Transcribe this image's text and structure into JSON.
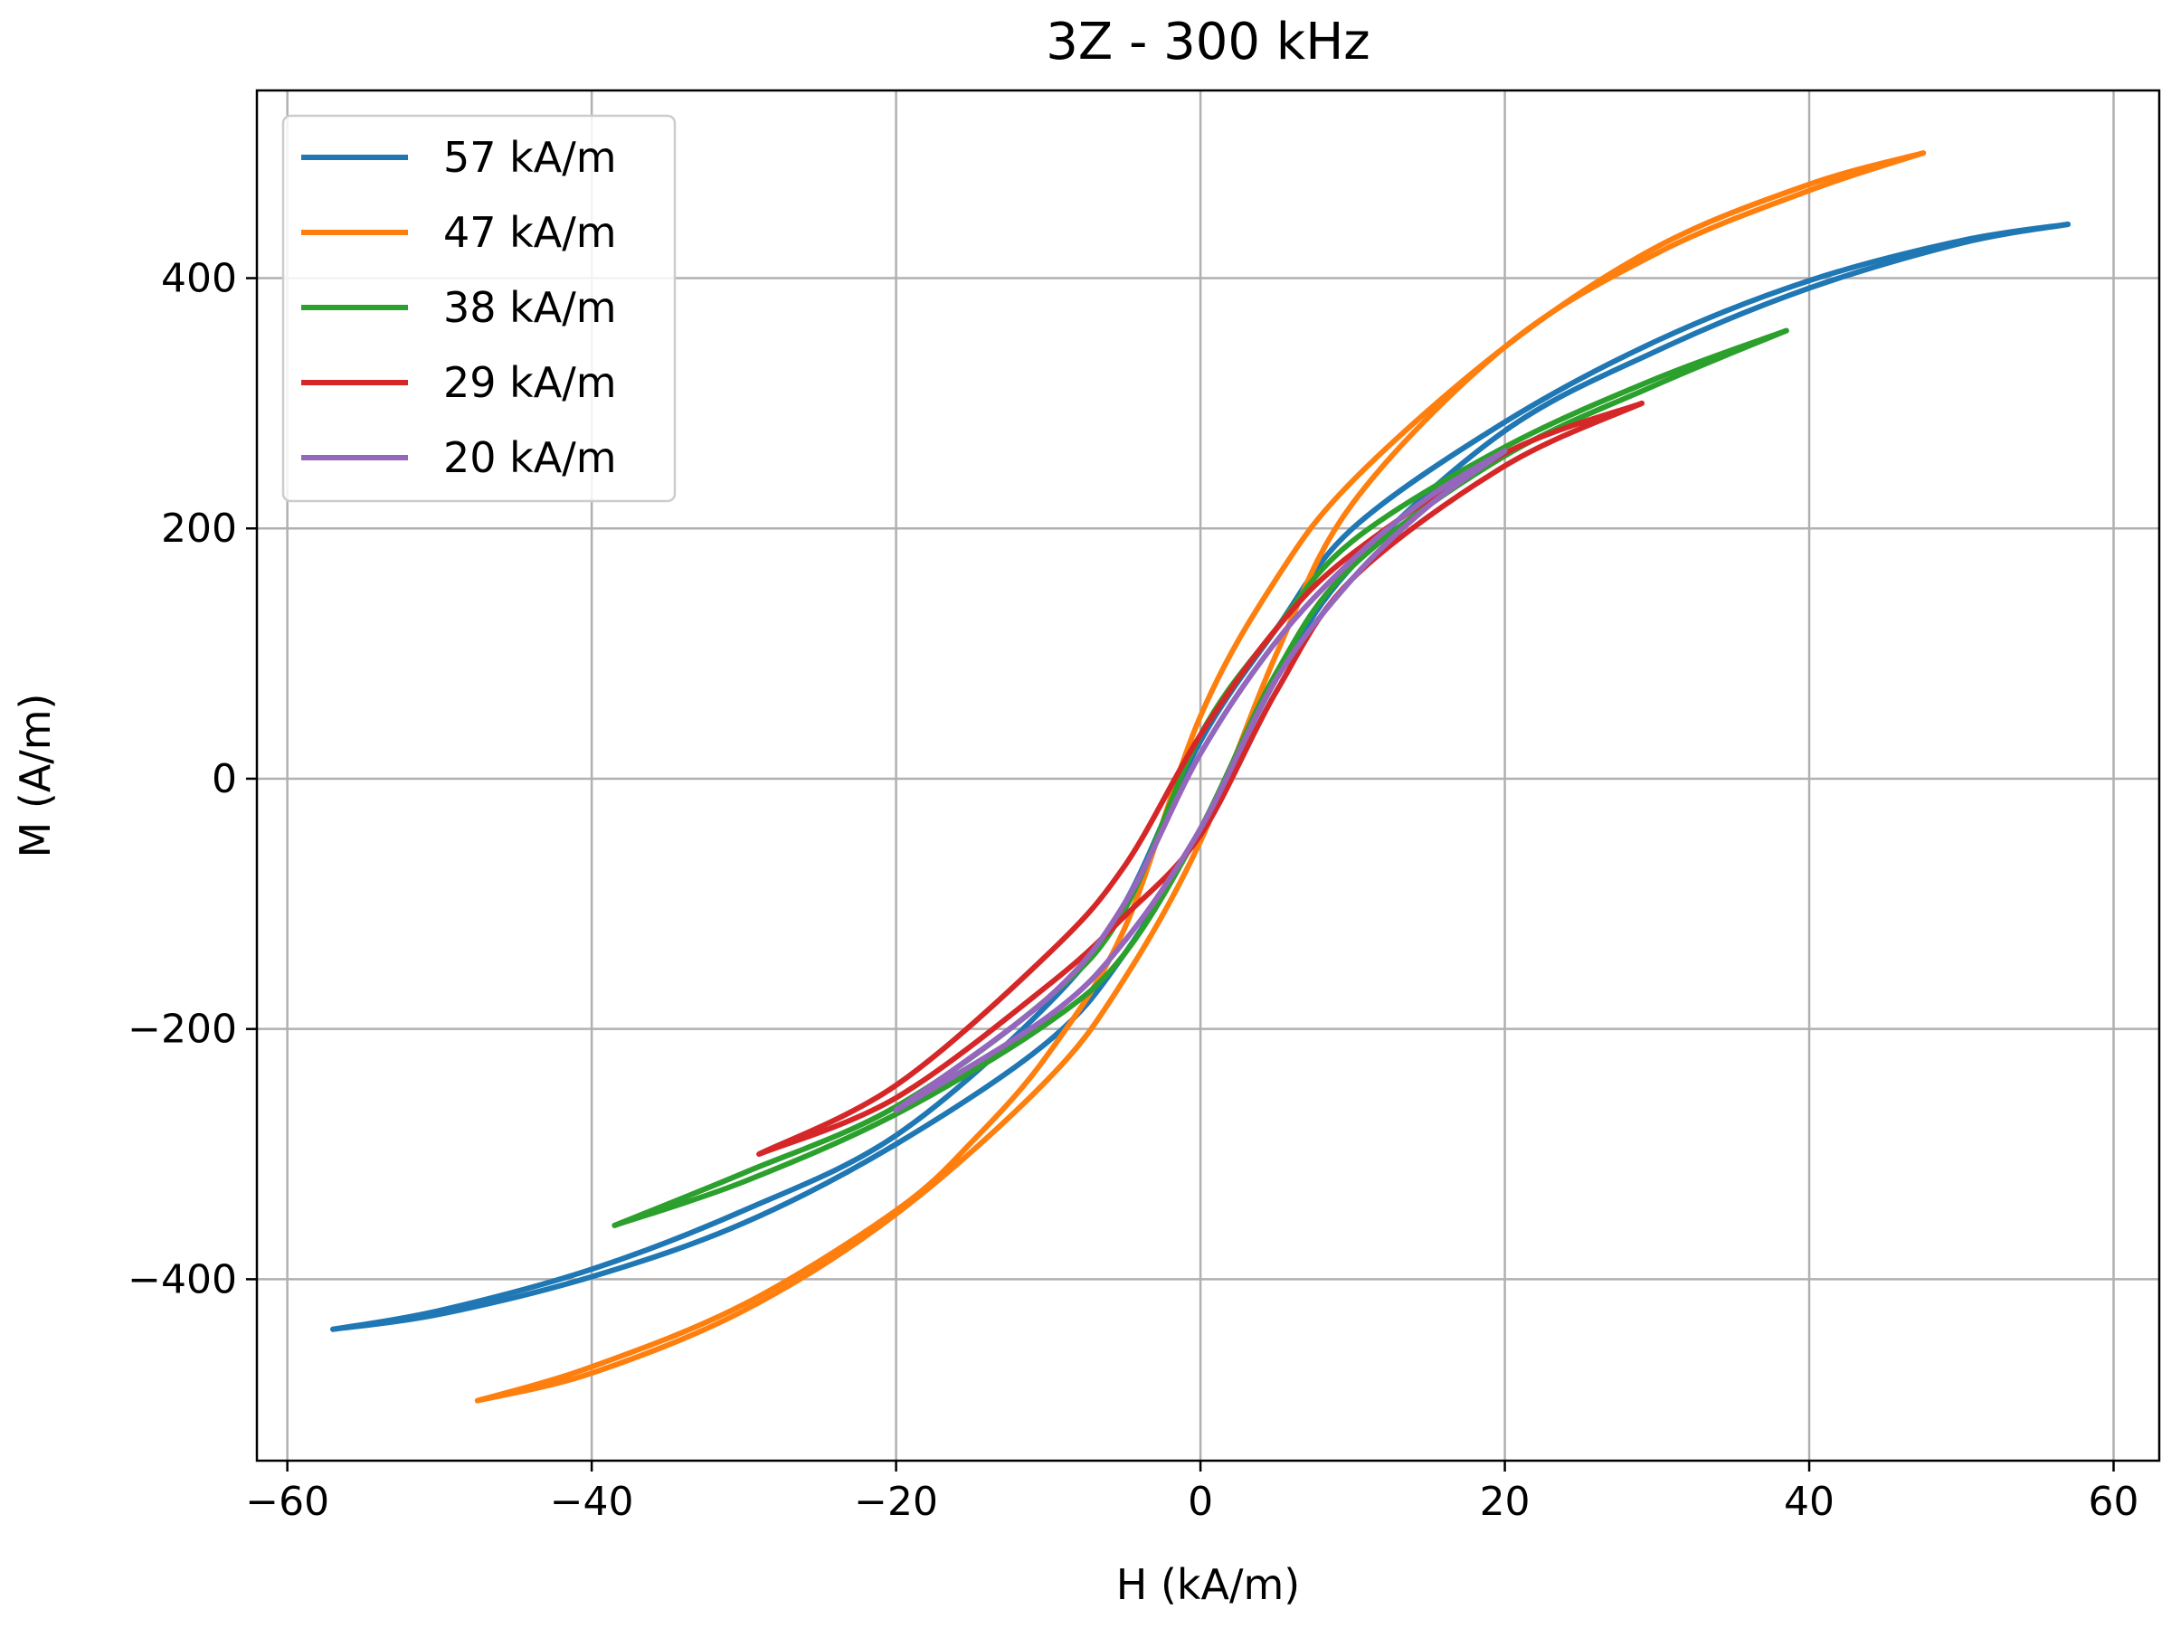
{
  "chart_data": {
    "type": "line",
    "title": "3Z - 300 kHz",
    "xlabel": "H (kA/m)",
    "ylabel": "M (A/m)",
    "xlim": [
      -62,
      63
    ],
    "ylim": [
      -545,
      550
    ],
    "xticks": [
      -60,
      -40,
      -20,
      0,
      20,
      40,
      60
    ],
    "xtick_labels": [
      "−60",
      "−40",
      "−20",
      "0",
      "20",
      "40",
      "60"
    ],
    "yticks": [
      -400,
      -200,
      0,
      200,
      400
    ],
    "ytick_labels": [
      "−400",
      "−200",
      "0",
      "200",
      "400"
    ],
    "grid": true,
    "legend_position": "top-left",
    "series": [
      {
        "name": "57 kA/m",
        "color": "#1f77b4",
        "upper": [
          [
            -57,
            -440
          ],
          [
            -50,
            -425
          ],
          [
            -40,
            -392
          ],
          [
            -30,
            -345
          ],
          [
            -20,
            -285
          ],
          [
            -10,
            -180
          ],
          [
            -5,
            -100
          ],
          [
            0,
            30
          ],
          [
            5,
            120
          ],
          [
            10,
            200
          ],
          [
            20,
            285
          ],
          [
            30,
            350
          ],
          [
            40,
            398
          ],
          [
            50,
            430
          ],
          [
            57,
            443
          ]
        ],
        "lower": [
          [
            -57,
            -440
          ],
          [
            -50,
            -428
          ],
          [
            -40,
            -398
          ],
          [
            -30,
            -355
          ],
          [
            -20,
            -292
          ],
          [
            -10,
            -210
          ],
          [
            -5,
            -140
          ],
          [
            0,
            -40
          ],
          [
            5,
            80
          ],
          [
            10,
            170
          ],
          [
            20,
            278
          ],
          [
            30,
            342
          ],
          [
            40,
            392
          ],
          [
            50,
            428
          ],
          [
            57,
            443
          ]
        ]
      },
      {
        "name": "47 kA/m",
        "color": "#ff7f0e",
        "upper": [
          [
            -47.5,
            -497
          ],
          [
            -40,
            -470
          ],
          [
            -30,
            -420
          ],
          [
            -20,
            -345
          ],
          [
            -15,
            -290
          ],
          [
            -10,
            -220
          ],
          [
            -5,
            -120
          ],
          [
            0,
            50
          ],
          [
            5,
            160
          ],
          [
            10,
            238
          ],
          [
            20,
            345
          ],
          [
            30,
            425
          ],
          [
            40,
            475
          ],
          [
            47.5,
            500
          ]
        ],
        "lower": [
          [
            -47.5,
            -497
          ],
          [
            -40,
            -475
          ],
          [
            -30,
            -425
          ],
          [
            -20,
            -348
          ],
          [
            -10,
            -240
          ],
          [
            -5,
            -160
          ],
          [
            0,
            -50
          ],
          [
            5,
            100
          ],
          [
            10,
            220
          ],
          [
            20,
            345
          ],
          [
            30,
            420
          ],
          [
            40,
            470
          ],
          [
            47.5,
            500
          ]
        ]
      },
      {
        "name": "38 kA/m",
        "color": "#2ca02c",
        "upper": [
          [
            -38.5,
            -357
          ],
          [
            -30,
            -315
          ],
          [
            -20,
            -262
          ],
          [
            -10,
            -175
          ],
          [
            -5,
            -105
          ],
          [
            0,
            35
          ],
          [
            5,
            120
          ],
          [
            10,
            190
          ],
          [
            20,
            265
          ],
          [
            30,
            320
          ],
          [
            38.5,
            358
          ]
        ],
        "lower": [
          [
            -38.5,
            -357
          ],
          [
            -30,
            -322
          ],
          [
            -20,
            -268
          ],
          [
            -10,
            -195
          ],
          [
            -5,
            -140
          ],
          [
            0,
            -40
          ],
          [
            5,
            85
          ],
          [
            10,
            170
          ],
          [
            20,
            258
          ],
          [
            30,
            315
          ],
          [
            38.5,
            358
          ]
        ]
      },
      {
        "name": "29 kA/m",
        "color": "#d62728",
        "upper": [
          [
            -29,
            -300
          ],
          [
            -20,
            -245
          ],
          [
            -10,
            -140
          ],
          [
            -5,
            -70
          ],
          [
            0,
            35
          ],
          [
            5,
            120
          ],
          [
            10,
            180
          ],
          [
            20,
            260
          ],
          [
            29,
            300
          ]
        ],
        "lower": [
          [
            -29,
            -300
          ],
          [
            -20,
            -255
          ],
          [
            -10,
            -165
          ],
          [
            -5,
            -110
          ],
          [
            0,
            -45
          ],
          [
            5,
            70
          ],
          [
            10,
            160
          ],
          [
            20,
            250
          ],
          [
            29,
            300
          ]
        ]
      },
      {
        "name": "20 kA/m",
        "color": "#9467bd",
        "upper": [
          [
            -20,
            -265
          ],
          [
            -10,
            -175
          ],
          [
            -5,
            -100
          ],
          [
            0,
            20
          ],
          [
            5,
            110
          ],
          [
            10,
            175
          ],
          [
            15,
            225
          ],
          [
            20,
            262
          ]
        ],
        "lower": [
          [
            -20,
            -265
          ],
          [
            -10,
            -190
          ],
          [
            -5,
            -130
          ],
          [
            0,
            -40
          ],
          [
            5,
            80
          ],
          [
            10,
            160
          ],
          [
            15,
            218
          ],
          [
            20,
            262
          ]
        ]
      }
    ]
  }
}
